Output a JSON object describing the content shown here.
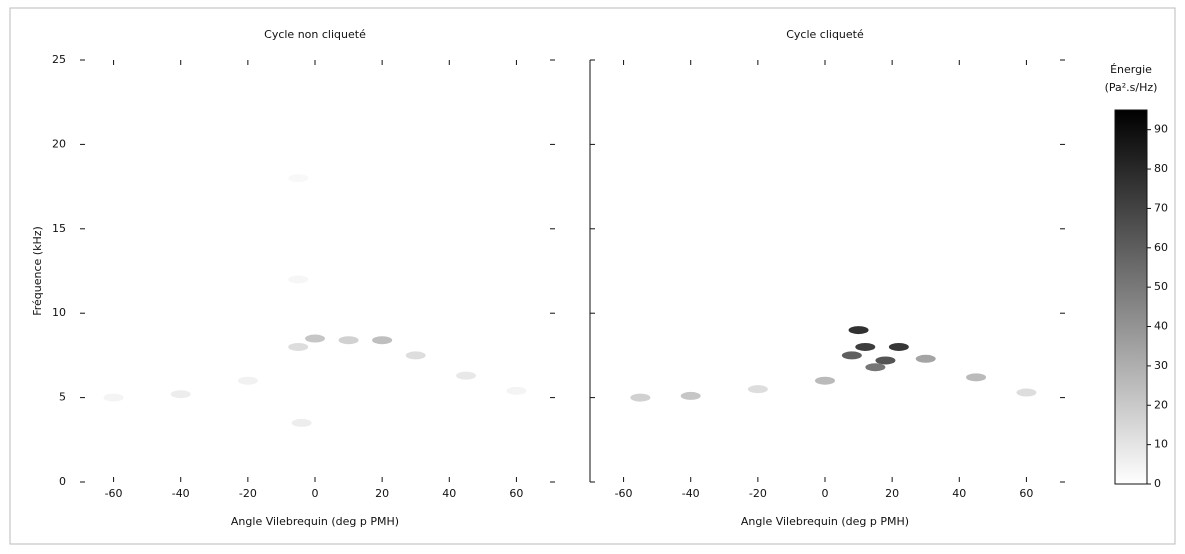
{
  "chart_data": [
    {
      "type": "heatmap-points",
      "title": "Cycle non cliqueté",
      "xlabel": "Angle Vilebrequin (deg p PMH)",
      "ylabel": "Fréquence (kHz)",
      "x": [
        -60,
        -40,
        -20,
        -5,
        0,
        10,
        20,
        30,
        45,
        60,
        -5,
        -5,
        -4
      ],
      "y": [
        5,
        5.2,
        6,
        8,
        8.5,
        8.4,
        8.4,
        7.5,
        6.3,
        5.4,
        12,
        18,
        3.5
      ],
      "values": [
        5,
        8,
        6,
        15,
        25,
        20,
        28,
        15,
        10,
        5,
        4,
        3,
        8
      ],
      "xlim": [
        -70,
        70
      ],
      "ylim": [
        0,
        25
      ],
      "xticks": [
        -60,
        -40,
        -20,
        0,
        20,
        40,
        60
      ],
      "yticks": [
        0,
        5,
        10,
        15,
        20,
        25
      ]
    },
    {
      "type": "heatmap-points",
      "title": "Cycle cliqueté",
      "xlabel": "Angle Vilebrequin (deg p PMH)",
      "x": [
        -55,
        -40,
        -20,
        0,
        8,
        10,
        12,
        15,
        18,
        22,
        30,
        45,
        60
      ],
      "y": [
        5,
        5.1,
        5.5,
        6,
        7.5,
        9,
        8,
        6.8,
        7.2,
        8,
        7.3,
        6.2,
        5.3
      ],
      "values": [
        20,
        25,
        15,
        30,
        70,
        90,
        85,
        60,
        75,
        88,
        40,
        30,
        15
      ],
      "xlim": [
        -70,
        70
      ],
      "ylim": [
        0,
        25
      ],
      "xticks": [
        -60,
        -40,
        -20,
        0,
        20,
        40,
        60
      ],
      "yticks": [
        0,
        5,
        10,
        15,
        20,
        25
      ],
      "colorbar": {
        "title": "Énergie",
        "unit": "(Pa².s/Hz)",
        "lim": [
          0,
          95
        ],
        "ticks": [
          0,
          10,
          20,
          30,
          40,
          50,
          60,
          70,
          80,
          90
        ]
      }
    }
  ]
}
